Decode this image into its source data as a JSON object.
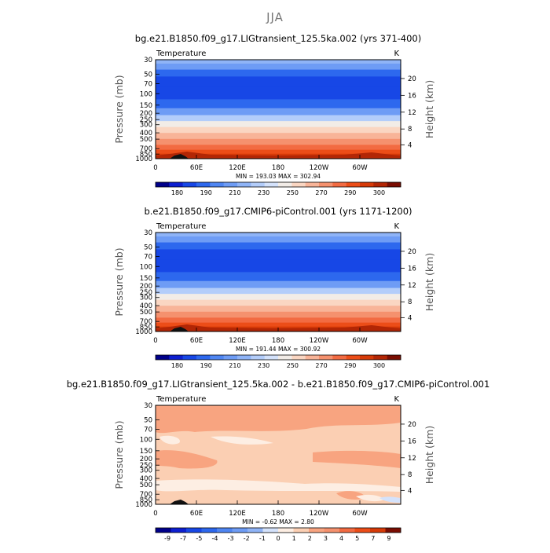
{
  "figure": {
    "suptitle": "JJA"
  },
  "chart_data": [
    {
      "type": "heatmap",
      "title": "bg.e21.B1850.f09_g17.LIGtransient_125.5ka.002 (yrs 371-400)",
      "variable_label": "Temperature",
      "units": "K",
      "ylabel": "Pressure (mb)",
      "y2label": "Height (km)",
      "x_ticks": [
        "0",
        "60E",
        "120E",
        "180",
        "120W",
        "60W"
      ],
      "y_ticks": [
        "30",
        "50",
        "70",
        "100",
        "150",
        "200",
        "250",
        "300",
        "400",
        "500",
        "700",
        "850",
        "1000"
      ],
      "y2_ticks": [
        "20",
        "16",
        "12",
        "8",
        "4"
      ],
      "stats": "MIN = 193.03   MAX = 302.94",
      "min": 193.03,
      "max": 302.94,
      "colorbar_labels": [
        "180",
        "190",
        "210",
        "230",
        "250",
        "270",
        "290",
        "300"
      ],
      "colorbar_colors": [
        "#00008a",
        "#0d1fd0",
        "#1747e6",
        "#2d68ee",
        "#4f86f2",
        "#6e9cf5",
        "#8fb4f7",
        "#b3cdfa",
        "#d4e2fb",
        "#f2ece7",
        "#fad6c2",
        "#f8b498",
        "#f5916e",
        "#f26b42",
        "#ec4d18",
        "#d63a08",
        "#b22605",
        "#7a0d02"
      ],
      "profile_colors_top_to_bottom": [
        "#8fb4f7",
        "#6e9cf5",
        "#2d68ee",
        "#1747e6",
        "#1747e6",
        "#2d68ee",
        "#6e9cf5",
        "#b3cdfa",
        "#f2ece7",
        "#fad6c2",
        "#f8b498",
        "#f5916e",
        "#f26b42",
        "#ec4d18",
        "#d63a08"
      ]
    },
    {
      "type": "heatmap",
      "title": "b.e21.B1850.f09_g17.CMIP6-piControl.001 (yrs 1171-1200)",
      "variable_label": "Temperature",
      "units": "K",
      "ylabel": "Pressure (mb)",
      "y2label": "Height (km)",
      "x_ticks": [
        "0",
        "60E",
        "120E",
        "180",
        "120W",
        "60W"
      ],
      "y_ticks": [
        "30",
        "50",
        "70",
        "100",
        "150",
        "200",
        "250",
        "300",
        "400",
        "500",
        "700",
        "850",
        "1000"
      ],
      "y2_ticks": [
        "20",
        "16",
        "12",
        "8",
        "4"
      ],
      "stats": "MIN = 191.44   MAX = 300.92",
      "min": 191.44,
      "max": 300.92,
      "colorbar_labels": [
        "180",
        "190",
        "210",
        "230",
        "250",
        "270",
        "290",
        "300"
      ],
      "colorbar_colors": [
        "#00008a",
        "#0d1fd0",
        "#1747e6",
        "#2d68ee",
        "#4f86f2",
        "#6e9cf5",
        "#8fb4f7",
        "#b3cdfa",
        "#d4e2fb",
        "#f2ece7",
        "#fad6c2",
        "#f8b498",
        "#f5916e",
        "#f26b42",
        "#ec4d18",
        "#d63a08",
        "#b22605",
        "#7a0d02"
      ],
      "profile_colors_top_to_bottom": [
        "#8fb4f7",
        "#6e9cf5",
        "#2d68ee",
        "#1747e6",
        "#1747e6",
        "#2d68ee",
        "#6e9cf5",
        "#b3cdfa",
        "#f2ece7",
        "#fad6c2",
        "#f8b498",
        "#f5916e",
        "#f26b42",
        "#ec4d18",
        "#d63a08"
      ]
    },
    {
      "type": "heatmap",
      "title": "bg.e21.B1850.f09_g17.LIGtransient_125.5ka.002 - b.e21.B1850.f09_g17.CMIP6-piControl.001",
      "variable_label": "Temperature",
      "units": "K",
      "ylabel": "Pressure (mb)",
      "y2label": "Height (km)",
      "x_ticks": [
        "0",
        "60E",
        "120E",
        "180",
        "120W",
        "60W"
      ],
      "y_ticks": [
        "30",
        "50",
        "70",
        "100",
        "150",
        "200",
        "250",
        "300",
        "400",
        "500",
        "700",
        "850",
        "1000"
      ],
      "y2_ticks": [
        "20",
        "16",
        "12",
        "8",
        "4"
      ],
      "stats": "MIN =   -0.62   MAX =    2.80",
      "min": -0.62,
      "max": 2.8,
      "colorbar_labels": [
        "-9",
        "-7",
        "-5",
        "-4",
        "-3",
        "-2",
        "-1",
        "0",
        "1",
        "2",
        "3",
        "4",
        "5",
        "7",
        "9"
      ],
      "colorbar_colors": [
        "#00008a",
        "#0d1fd0",
        "#1747e6",
        "#2d68ee",
        "#4f86f2",
        "#6e9cf5",
        "#8fb4f7",
        "#d4e2fb",
        "#fdeee3",
        "#fbcfb3",
        "#f8a480",
        "#f5916e",
        "#f26b42",
        "#ec4d18",
        "#d63a08",
        "#7a0d02"
      ],
      "base_color": "#fbcfb3",
      "patch_colors": {
        "warm": "#f8a480",
        "cool": "#fdeee3",
        "cold": "#d4e2fb"
      }
    }
  ]
}
